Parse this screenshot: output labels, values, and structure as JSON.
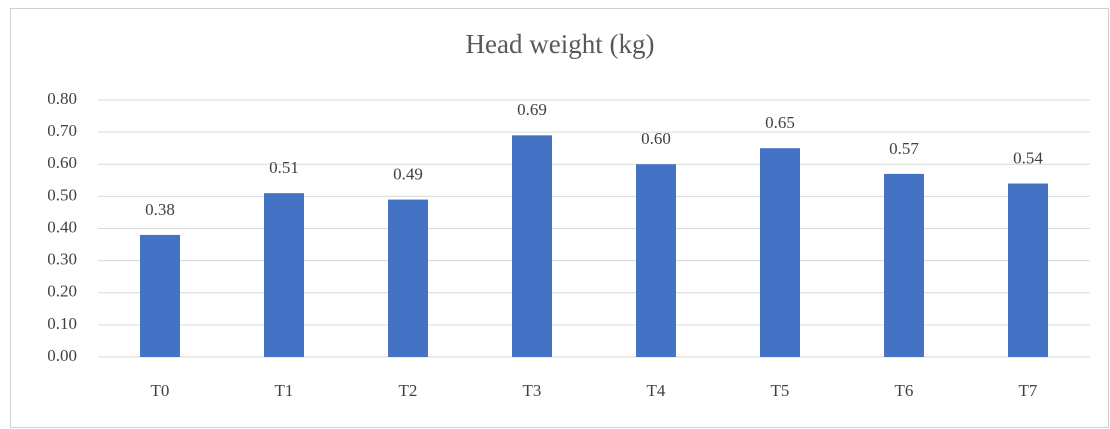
{
  "chart_data": {
    "type": "bar",
    "title": "Head weight (kg)",
    "categories": [
      "T0",
      "T1",
      "T2",
      "T3",
      "T4",
      "T5",
      "T6",
      "T7"
    ],
    "values": [
      0.38,
      0.51,
      0.49,
      0.69,
      0.6,
      0.65,
      0.57,
      0.54
    ],
    "value_labels": [
      "0.38",
      "0.51",
      "0.49",
      "0.69",
      "0.60",
      "0.65",
      "0.57",
      "0.54"
    ],
    "color": "#4472c4",
    "ylim": [
      0,
      0.8
    ],
    "yticks": [
      {
        "value": 0,
        "label": "0.00"
      },
      {
        "value": 0.1,
        "label": "0.10"
      },
      {
        "value": 0.2,
        "label": "0.20"
      },
      {
        "value": 0.3,
        "label": "0.30"
      },
      {
        "value": 0.4,
        "label": "0.40"
      },
      {
        "value": 0.5,
        "label": "0.50"
      },
      {
        "value": 0.6,
        "label": "0.60"
      },
      {
        "value": 0.7,
        "label": "0.70"
      },
      {
        "value": 0.8,
        "label": "0.80"
      }
    ],
    "grid": true
  }
}
